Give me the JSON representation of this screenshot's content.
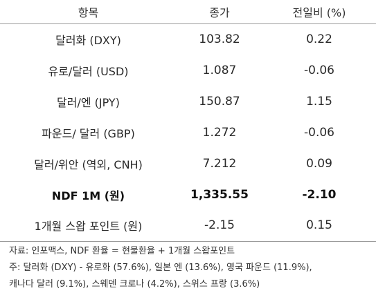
{
  "table": {
    "headers": [
      "항목",
      "종가",
      "전일비 (%)"
    ],
    "rows": [
      {
        "name": "달러화 (DXY)",
        "close": "103.82",
        "change": "0.22",
        "bold": false
      },
      {
        "name": "유로/달러 (USD)",
        "close": "1.087",
        "change": "-0.06",
        "bold": false
      },
      {
        "name": "달러/엔 (JPY)",
        "close": "150.87",
        "change": "1.15",
        "bold": false
      },
      {
        "name": "파운드/ 달러 (GBP)",
        "close": "1.272",
        "change": "-0.06",
        "bold": false
      },
      {
        "name": "달러/위안 (역외, CNH)",
        "close": "7.212",
        "change": "0.09",
        "bold": false
      },
      {
        "name": "NDF 1M (원)",
        "close": "1,335.55",
        "change": "-2.10",
        "bold": true
      },
      {
        "name": "1개월 스왑 포인트 (원)",
        "close": "-2.15",
        "change": "0.15",
        "bold": false
      }
    ]
  },
  "notes": {
    "source": "자료: 인포맥스, NDF 환율 = 현물환율 + 1개월 스왑포인트",
    "note_line1": "주: 달러화 (DXY) - 유로화 (57.6%), 일본 엔 (13.6%), 영국 파운드 (11.9%),",
    "note_line2": "캐나다 달러 (9.1%), 스웨덴 크로나 (4.2%), 스위스 프랑 (3.6%)"
  }
}
